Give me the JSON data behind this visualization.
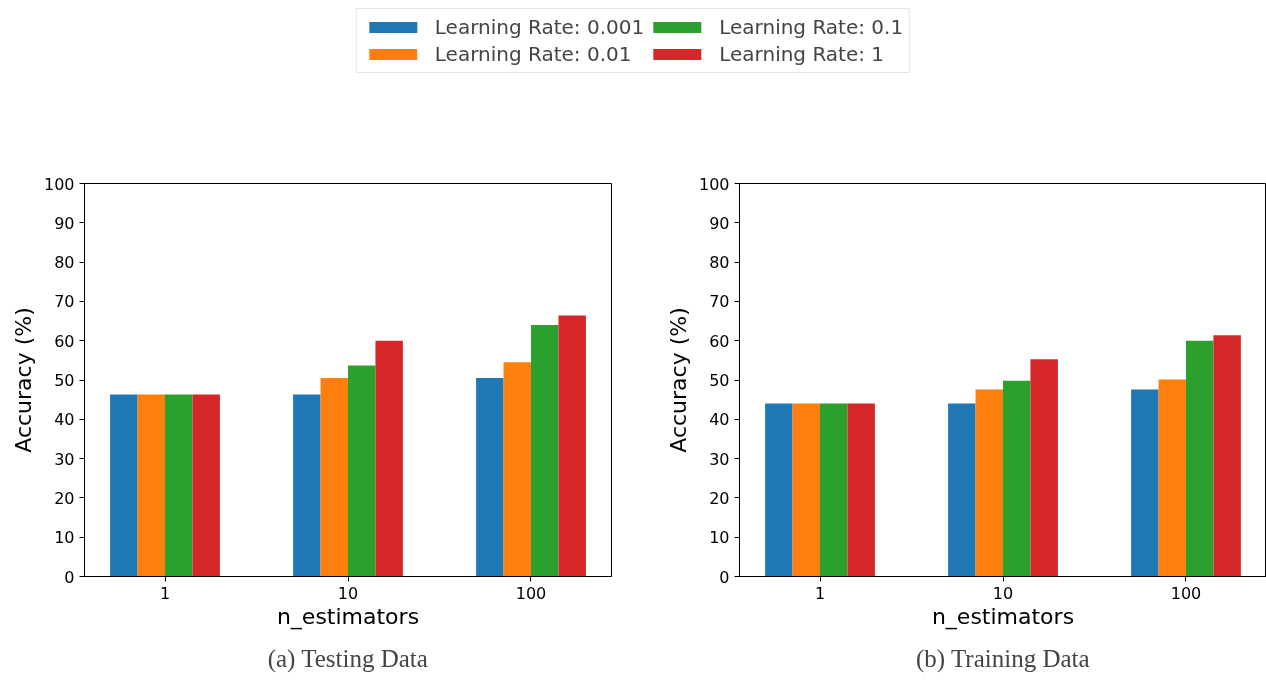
{
  "chart_data": [
    {
      "type": "bar",
      "title": "(a) Testing Data",
      "xlabel": "n_estimators",
      "ylabel": "Accuracy (%)",
      "categories": [
        "1",
        "10",
        "100"
      ],
      "ylim": [
        0,
        100
      ],
      "yticks": [
        0,
        10,
        20,
        30,
        40,
        50,
        60,
        70,
        80,
        90,
        100
      ],
      "grid": false,
      "legend": "top",
      "series": [
        {
          "name": "Learning Rate: 0.001",
          "color": "#1f77b4",
          "values": [
            46.3,
            46.3,
            50.5
          ]
        },
        {
          "name": "Learning Rate: 0.01",
          "color": "#ff7f0e",
          "values": [
            46.3,
            50.5,
            54.5
          ]
        },
        {
          "name": "Learning Rate: 0.1",
          "color": "#2ca02c",
          "values": [
            46.3,
            53.7,
            64.0
          ]
        },
        {
          "name": "Learning Rate: 1",
          "color": "#d62728",
          "values": [
            46.3,
            60.0,
            66.4
          ]
        }
      ]
    },
    {
      "type": "bar",
      "title": "(b) Training Data",
      "xlabel": "n_estimators",
      "ylabel": "Accuracy (%)",
      "categories": [
        "1",
        "10",
        "100"
      ],
      "ylim": [
        0,
        100
      ],
      "yticks": [
        0,
        10,
        20,
        30,
        40,
        50,
        60,
        70,
        80,
        90,
        100
      ],
      "grid": false,
      "series": [
        {
          "color": "#1f77b4",
          "values": [
            44.0,
            44.0,
            47.6
          ]
        },
        {
          "color": "#ff7f0e",
          "values": [
            44.0,
            47.6,
            50.1
          ]
        },
        {
          "color": "#2ca02c",
          "values": [
            44.0,
            49.8,
            60.0
          ]
        },
        {
          "color": "#d62728",
          "values": [
            44.0,
            55.3,
            61.4
          ]
        }
      ]
    }
  ]
}
